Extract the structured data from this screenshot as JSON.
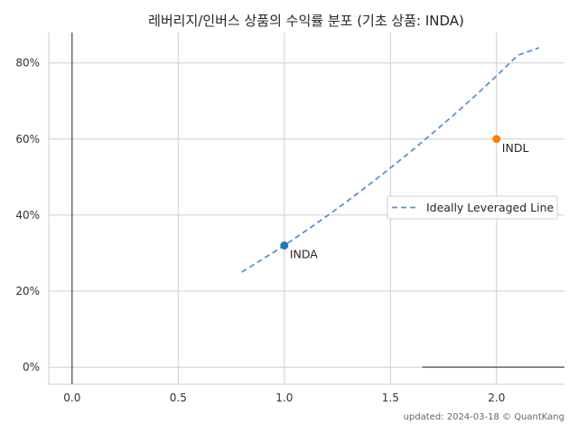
{
  "chart_data": {
    "type": "scatter",
    "title": "레버리지/인버스 상품의 수익률 분포 (기초 상품: INDA)",
    "xlabel": "",
    "ylabel": "",
    "xlim": [
      -0.11,
      2.32
    ],
    "ylim": [
      -0.045,
      0.88
    ],
    "x_ticks": [
      0.0,
      0.5,
      1.0,
      1.5,
      2.0
    ],
    "x_tick_labels": [
      "0.0",
      "0.5",
      "1.0",
      "1.5",
      "2.0"
    ],
    "y_ticks": [
      0.0,
      0.2,
      0.4,
      0.6,
      0.8
    ],
    "y_tick_labels": [
      "0%",
      "20%",
      "40%",
      "60%",
      "80%"
    ],
    "grid": true,
    "legend_position": "center-right",
    "points": [
      {
        "label": "INDA",
        "x": 1.0,
        "y": 0.32,
        "color": "#1f77b4"
      },
      {
        "label": "INDL",
        "x": 2.0,
        "y": 0.6,
        "color": "#ff7f0e"
      }
    ],
    "series": [
      {
        "name": "Ideally Leveraged Line",
        "style": "dashed",
        "color": "#5b8fe0",
        "x": [
          0.8,
          0.9,
          1.0,
          1.1,
          1.2,
          1.3,
          1.4,
          1.5,
          1.6,
          1.7,
          1.8,
          1.9,
          2.0,
          2.1,
          2.2
        ],
        "y": [
          0.25,
          0.285,
          0.32,
          0.358,
          0.397,
          0.438,
          0.48,
          0.524,
          0.569,
          0.616,
          0.664,
          0.714,
          0.766,
          0.82,
          0.84
        ]
      }
    ],
    "reference_lines": {
      "vertical_at_x": 0.0,
      "horizontal_at_y": 0.0,
      "horizontal_from_x": 1.65
    }
  },
  "footer": "updated: 2024-03-18 © QuantKang"
}
